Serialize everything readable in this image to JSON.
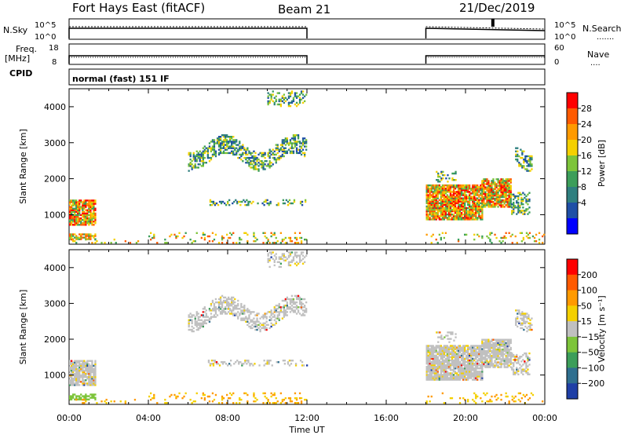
{
  "header": {
    "station": "Fort Hays East (fitACF)",
    "beam": "Beam 21",
    "date": "21/Dec/2019"
  },
  "top_panels": {
    "nsky_label": "N.Sky",
    "nsky_ticks": [
      "10^5",
      "10^0"
    ],
    "nsearch_label": "N.Search",
    "nsearch_ticks": [
      "10^5",
      "10^0"
    ],
    "freq_label_1": "Freq.",
    "freq_label_2": "[MHz]",
    "freq_ticks": [
      "18",
      "8"
    ],
    "nave_label": "Nave",
    "nave_ticks": [
      "60",
      "0"
    ],
    "cpid_label": "CPID",
    "mode_text": "normal (fast) 151 IF"
  },
  "chart_data": [
    {
      "type": "heatmap",
      "name": "power",
      "ylabel": "Slant Range [km]",
      "xlabel": "Time UT",
      "x_ticks": [
        "00:00",
        "04:00",
        "08:00",
        "12:00",
        "16:00",
        "20:00",
        "00:00"
      ],
      "y_ticks": [
        1000,
        2000,
        3000,
        4000
      ],
      "ylim": [
        180,
        4500
      ],
      "xlim_hours": [
        0,
        24
      ],
      "colorbar_label": "Power [dB]",
      "colorbar_ticks": [
        "28",
        "24",
        "20",
        "16",
        "12",
        "8",
        "4"
      ],
      "colorbar_range": [
        0,
        32
      ],
      "colors": [
        "#0000ff",
        "#1f4fa6",
        "#2f7f7f",
        "#3c9e5a",
        "#7dc43a",
        "#f4d000",
        "#ff9a00",
        "#ff5a00",
        "#ff0000"
      ],
      "data_gaps_hours": [
        [
          12,
          18
        ]
      ]
    },
    {
      "type": "heatmap",
      "name": "velocity",
      "ylabel": "Slant Range [km]",
      "xlabel": "Time UT",
      "x_ticks": [
        "00:00",
        "04:00",
        "08:00",
        "12:00",
        "16:00",
        "20:00",
        "00:00"
      ],
      "y_ticks": [
        1000,
        2000,
        3000,
        4000
      ],
      "ylim": [
        180,
        4500
      ],
      "xlim_hours": [
        0,
        24
      ],
      "colorbar_label": "Velocity [m s⁻¹]",
      "colorbar_ticks": [
        "200",
        "100",
        "50",
        "15",
        "−15",
        "−50",
        "−100",
        "−200"
      ],
      "colorbar_range": [
        -250,
        250
      ],
      "colors": [
        "#1f3fa6",
        "#2f6f8f",
        "#3c9e5a",
        "#7dc43a",
        "#c0c0c0",
        "#f4d000",
        "#ff9a00",
        "#ff5a00",
        "#ff0000"
      ],
      "data_gaps_hours": [
        [
          12,
          18
        ]
      ]
    }
  ]
}
